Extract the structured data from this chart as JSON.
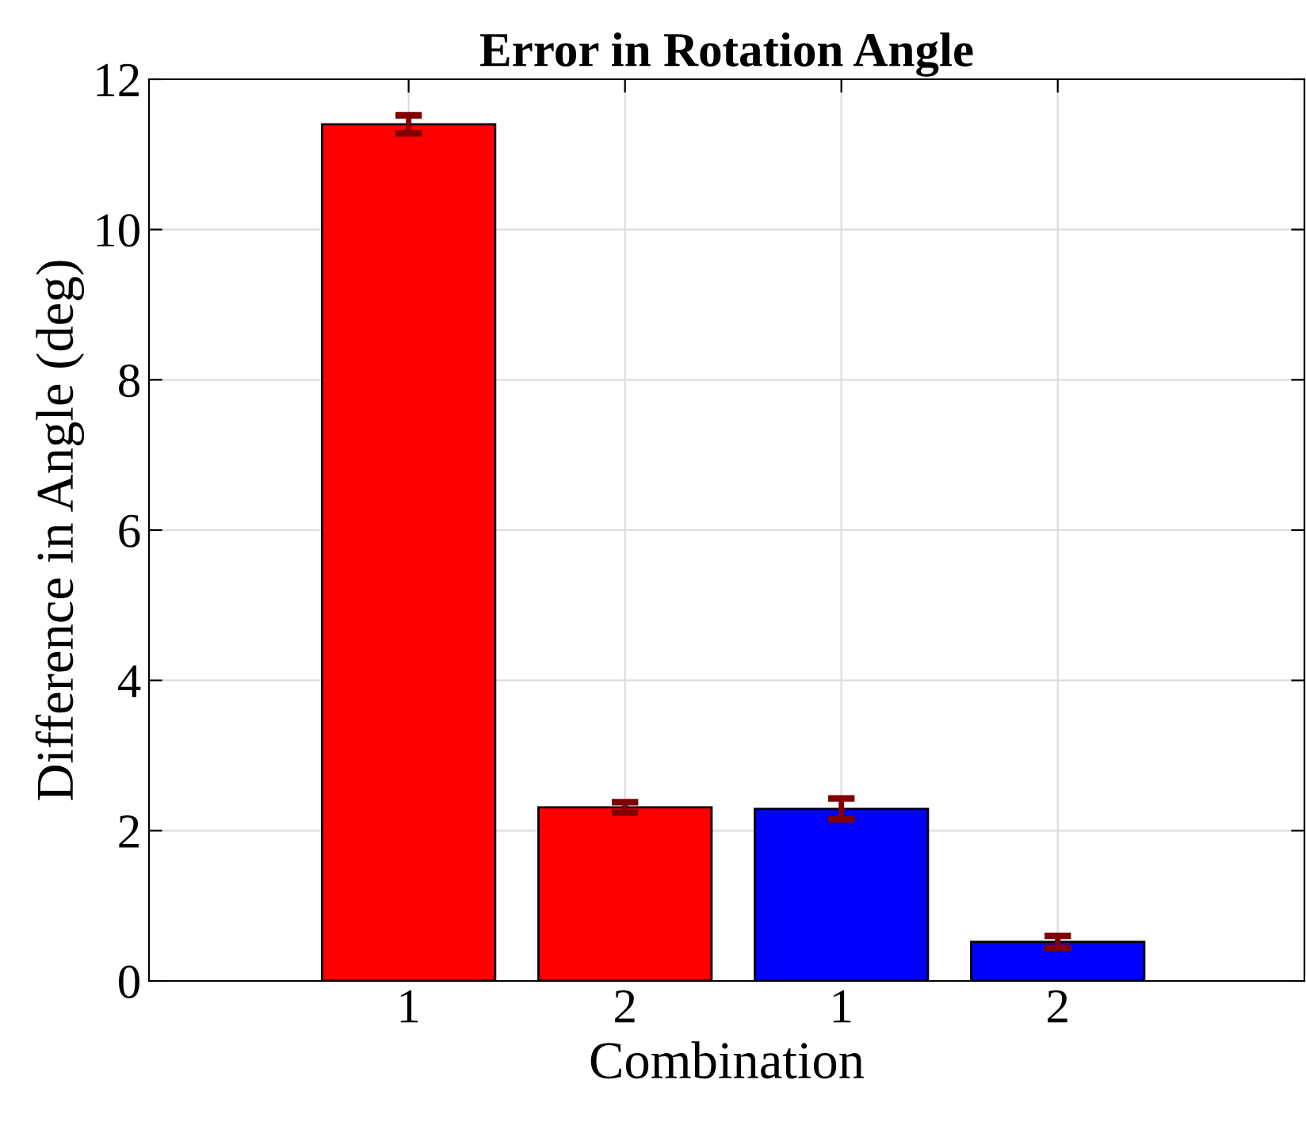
{
  "chart_data": {
    "type": "bar",
    "title": "Error in Rotation Angle",
    "xlabel": "Combination",
    "ylabel": "Difference in Angle (deg)",
    "categories": [
      "1",
      "2",
      "1",
      "2"
    ],
    "values": [
      11.4,
      2.31,
      2.29,
      0.52
    ],
    "colors": [
      "#ff0000",
      "#ff0000",
      "#0000ff",
      "#0000ff"
    ],
    "errors": [
      0.12,
      0.07,
      0.14,
      0.08
    ],
    "ylim": [
      0,
      12
    ],
    "yticks": [
      0,
      2,
      4,
      6,
      8,
      10,
      12
    ],
    "grid": true
  }
}
